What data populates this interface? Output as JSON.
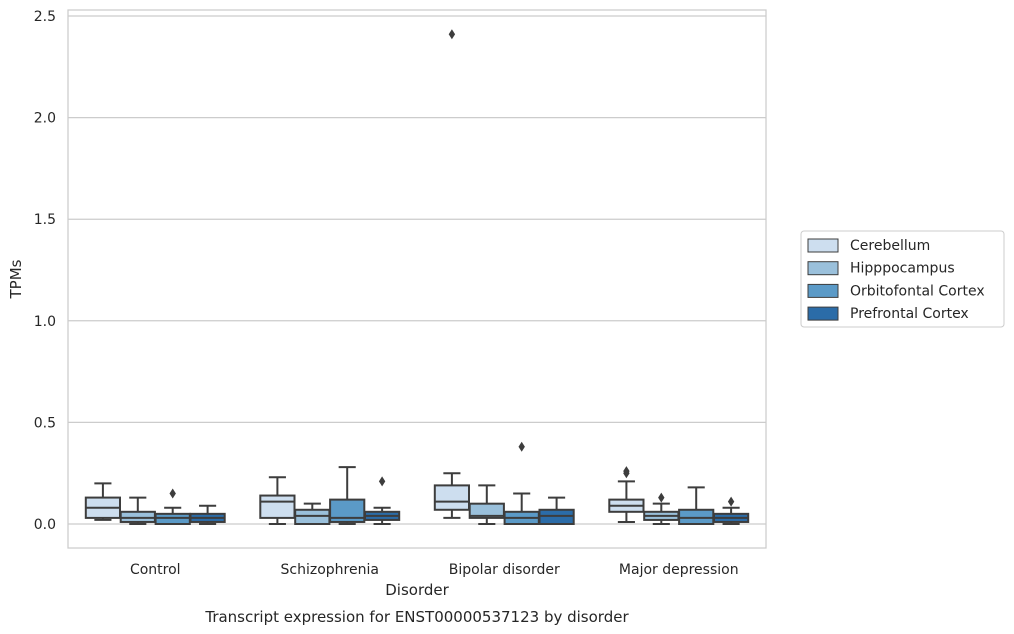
{
  "chart_data": {
    "type": "box",
    "caption": "Transcript expression for ENST00000537123 by disorder",
    "xlabel": "Disorder",
    "ylabel": "TPMs",
    "ylim": [
      -0.12,
      2.55
    ],
    "yticks": [
      0.0,
      0.5,
      1.0,
      1.5,
      2.0,
      2.5
    ],
    "ytick_labels": [
      "0.0",
      "0.5",
      "1.0",
      "1.5",
      "2.0",
      "2.5"
    ],
    "grid": true,
    "legend_position": "right",
    "categories": [
      "Control",
      "Schizophrenia",
      "Bipolar disorder",
      "Major depression"
    ],
    "series": [
      {
        "name": "Cerebellum",
        "color": "#cddeef",
        "boxes": [
          {
            "q1": 0.03,
            "median": 0.08,
            "q3": 0.13,
            "whislo": 0.02,
            "whishi": 0.2,
            "fliers": []
          },
          {
            "q1": 0.03,
            "median": 0.11,
            "q3": 0.14,
            "whislo": 0.0,
            "whishi": 0.23,
            "fliers": []
          },
          {
            "q1": 0.07,
            "median": 0.11,
            "q3": 0.19,
            "whislo": 0.03,
            "whishi": 0.25,
            "fliers": [
              2.41
            ]
          },
          {
            "q1": 0.06,
            "median": 0.09,
            "q3": 0.12,
            "whislo": 0.01,
            "whishi": 0.21,
            "fliers": [
              0.25,
              0.26
            ]
          }
        ]
      },
      {
        "name": "Hipppocampus",
        "color": "#9ac0db",
        "boxes": [
          {
            "q1": 0.01,
            "median": 0.03,
            "q3": 0.06,
            "whislo": 0.0,
            "whishi": 0.13,
            "fliers": []
          },
          {
            "q1": 0.0,
            "median": 0.04,
            "q3": 0.07,
            "whislo": 0.0,
            "whishi": 0.1,
            "fliers": []
          },
          {
            "q1": 0.03,
            "median": 0.04,
            "q3": 0.1,
            "whislo": 0.0,
            "whishi": 0.19,
            "fliers": []
          },
          {
            "q1": 0.02,
            "median": 0.04,
            "q3": 0.06,
            "whislo": 0.0,
            "whishi": 0.1,
            "fliers": [
              0.13
            ]
          }
        ]
      },
      {
        "name": "Orbitofontal Cortex",
        "color": "#5b9ac7",
        "boxes": [
          {
            "q1": 0.0,
            "median": 0.03,
            "q3": 0.05,
            "whislo": 0.0,
            "whishi": 0.08,
            "fliers": [
              0.15
            ]
          },
          {
            "q1": 0.01,
            "median": 0.03,
            "q3": 0.12,
            "whislo": 0.0,
            "whishi": 0.28,
            "fliers": []
          },
          {
            "q1": 0.0,
            "median": 0.03,
            "q3": 0.06,
            "whislo": 0.0,
            "whishi": 0.15,
            "fliers": [
              0.38
            ]
          },
          {
            "q1": 0.0,
            "median": 0.03,
            "q3": 0.07,
            "whislo": 0.0,
            "whishi": 0.18,
            "fliers": []
          }
        ]
      },
      {
        "name": "Prefrontal Cortex",
        "color": "#2b6ca8",
        "boxes": [
          {
            "q1": 0.01,
            "median": 0.03,
            "q3": 0.05,
            "whislo": 0.0,
            "whishi": 0.09,
            "fliers": []
          },
          {
            "q1": 0.02,
            "median": 0.04,
            "q3": 0.06,
            "whislo": 0.0,
            "whishi": 0.08,
            "fliers": [
              0.21
            ]
          },
          {
            "q1": 0.0,
            "median": 0.04,
            "q3": 0.07,
            "whislo": 0.0,
            "whishi": 0.13,
            "fliers": []
          },
          {
            "q1": 0.01,
            "median": 0.03,
            "q3": 0.05,
            "whislo": 0.0,
            "whishi": 0.08,
            "fliers": [
              0.11
            ]
          }
        ]
      }
    ]
  }
}
